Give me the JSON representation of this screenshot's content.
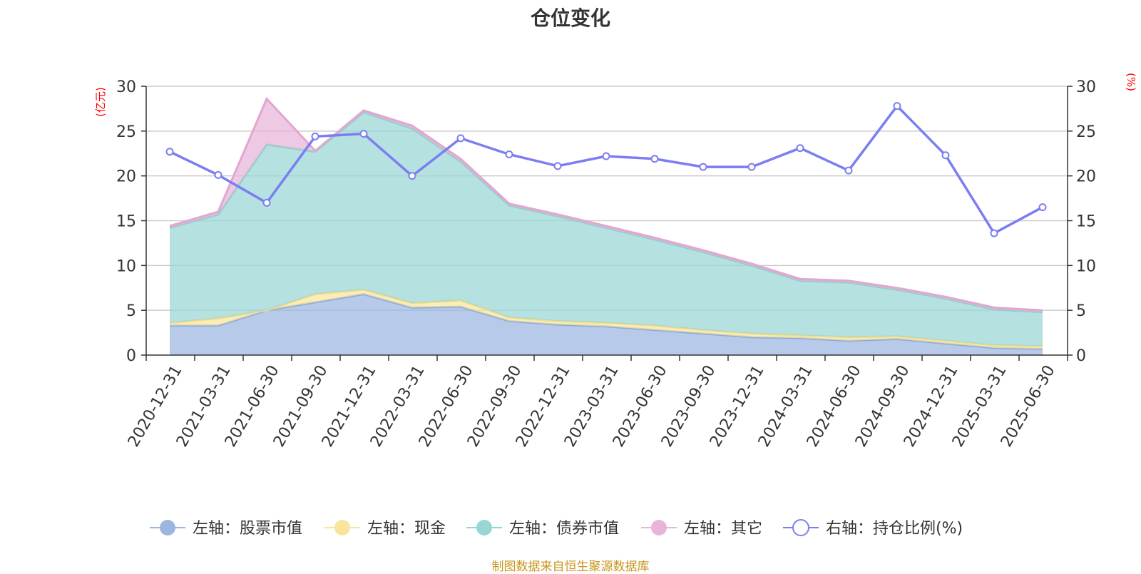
{
  "chart_data": {
    "type": "area",
    "title": "仓位变化",
    "left_axis_unit": "(亿元)",
    "right_axis_unit": "(%)",
    "left_ylim": [
      0,
      30
    ],
    "right_ylim": [
      0,
      30
    ],
    "left_ticks": [
      "0",
      "5",
      "10",
      "15",
      "20",
      "25",
      "30"
    ],
    "right_ticks": [
      "0",
      "5",
      "10",
      "15",
      "20",
      "25",
      "30"
    ],
    "grid": true,
    "legend_position": "bottom",
    "categories": [
      "2020-12-31",
      "2021-03-31",
      "2021-06-30",
      "2021-09-30",
      "2021-12-31",
      "2022-03-31",
      "2022-06-30",
      "2022-09-30",
      "2022-12-31",
      "2023-03-31",
      "2023-06-30",
      "2023-09-30",
      "2023-12-31",
      "2024-03-31",
      "2024-06-30",
      "2024-09-30",
      "2024-12-31",
      "2025-03-31",
      "2025-06-30"
    ],
    "series": [
      {
        "name": "左轴：股票市值",
        "axis": "left",
        "kind": "stacked-area",
        "color": "#9bb6e0",
        "values": [
          3.3,
          3.3,
          5.0,
          5.9,
          6.8,
          5.3,
          5.4,
          3.8,
          3.4,
          3.2,
          2.8,
          2.4,
          2.0,
          1.9,
          1.6,
          1.8,
          1.3,
          0.8,
          0.7
        ]
      },
      {
        "name": "左轴：现金",
        "axis": "left",
        "kind": "stacked-area",
        "color": "#f9e49c",
        "values": [
          0.3,
          0.8,
          0.0,
          0.9,
          0.5,
          0.5,
          0.7,
          0.4,
          0.4,
          0.4,
          0.5,
          0.4,
          0.4,
          0.3,
          0.4,
          0.3,
          0.3,
          0.3,
          0.3
        ]
      },
      {
        "name": "左轴：债券市值",
        "axis": "left",
        "kind": "stacked-area",
        "color": "#98d6d6",
        "values": [
          10.6,
          11.6,
          18.5,
          15.9,
          19.8,
          19.5,
          15.5,
          12.5,
          11.7,
          10.6,
          9.6,
          8.7,
          7.6,
          6.1,
          6.1,
          5.2,
          4.7,
          4.0,
          3.8
        ]
      },
      {
        "name": "左轴：其它",
        "axis": "left",
        "kind": "stacked-area",
        "color": "#e8b4d8",
        "values": [
          0.2,
          0.3,
          5.1,
          0.1,
          0.2,
          0.3,
          0.3,
          0.2,
          0.2,
          0.2,
          0.2,
          0.2,
          0.2,
          0.2,
          0.2,
          0.2,
          0.2,
          0.2,
          0.2
        ]
      },
      {
        "name": "右轴：持仓比例(%)",
        "axis": "right",
        "kind": "line",
        "color": "#7b7ef0",
        "values": [
          22.7,
          20.1,
          17.0,
          24.4,
          24.7,
          20.0,
          24.2,
          22.4,
          21.1,
          22.2,
          21.9,
          21.0,
          21.0,
          23.1,
          20.6,
          27.8,
          22.3,
          13.6,
          16.5
        ]
      }
    ]
  },
  "footer": {
    "source": "制图数据来自恒生聚源数据库"
  }
}
